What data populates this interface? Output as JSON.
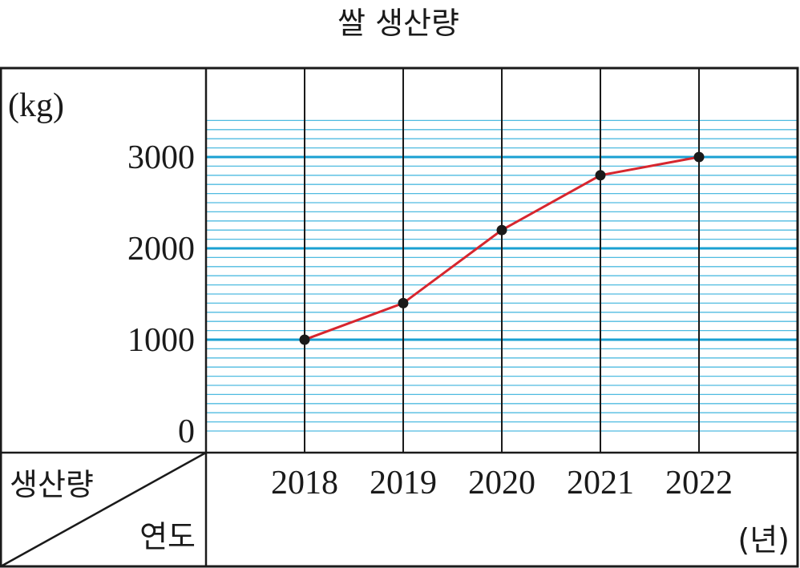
{
  "chart_data": {
    "type": "line",
    "title": "쌀 생산량",
    "unit_label": "(kg)",
    "x_unit_label": "(년)",
    "corner_label_top": "생산량",
    "corner_label_bottom": "연도",
    "categories": [
      "2018",
      "2019",
      "2020",
      "2021",
      "2022"
    ],
    "values": [
      1000,
      1400,
      2200,
      2800,
      3000
    ],
    "y_ticks": [
      "0",
      "1000",
      "2000",
      "3000"
    ],
    "ylim": [
      0,
      3400
    ],
    "grid": true,
    "colors": {
      "line": "#d7262e",
      "marker": "#1a1a1a",
      "major_grid": "#1aa0d2",
      "minor_grid": "#4fbbe0"
    }
  }
}
